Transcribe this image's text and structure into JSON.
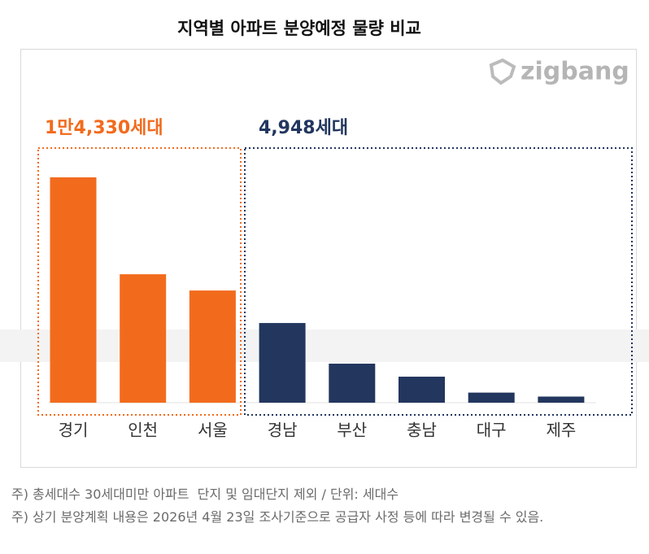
{
  "title": "지역별 아파트 분양예정 물량 비교",
  "logo": "zigbang",
  "chart_data": [
    {
      "type": "bar",
      "annotation": "1만4,330세대",
      "color": "#f26b1d",
      "categories": [
        "경기",
        "인천",
        "서울"
      ],
      "values": [
        6930,
        3950,
        3450
      ]
    },
    {
      "type": "bar",
      "annotation": "4,948세대",
      "color": "#22365e",
      "categories": [
        "경남",
        "부산",
        "충남",
        "대구",
        "제주"
      ],
      "values": [
        2450,
        1200,
        800,
        310,
        188
      ]
    }
  ],
  "notes": [
    "주) 총세대수 30세대미만 아파트  단지 및 임대단지 제외 / 단위: 세대수",
    "주) 상기 분양계획 내용은 2026년 4월 23일 조사기준으로 공급자 사정 등에 따라 변경될 수 있음."
  ]
}
